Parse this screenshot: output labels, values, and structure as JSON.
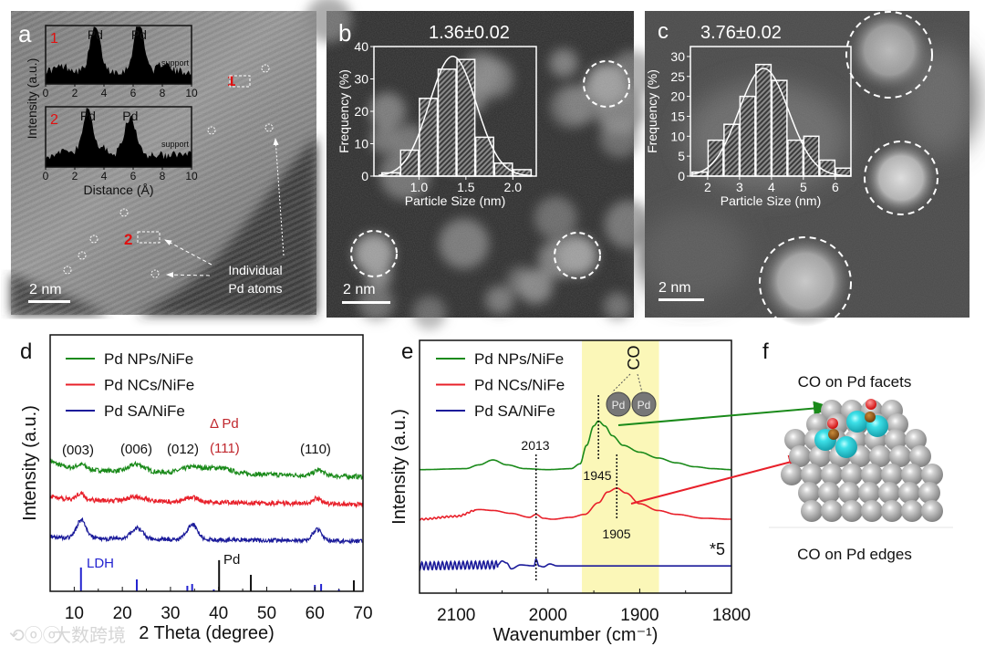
{
  "panels": {
    "a": {
      "label": "a",
      "scale_bar": "2 nm",
      "marker_1": "1",
      "marker_2": "2",
      "annotation_line1": "Individual",
      "annotation_line2": "Pd atoms",
      "inset_ylabel": "Intensity (a.u.)",
      "inset_xlabel": "Distance (Å)",
      "profile1": {
        "index": "1",
        "peak_label_1": "Pd",
        "peak_label_2": "Pd",
        "support_label": "support"
      },
      "profile2": {
        "index": "2",
        "peak_label_1": "Pd",
        "peak_label_2": "Pd",
        "support_label": "support"
      }
    },
    "b": {
      "label": "b",
      "size_text": "1.36±0.02",
      "scale_bar": "2 nm"
    },
    "c": {
      "label": "c",
      "size_text": "3.76±0.02",
      "scale_bar": "2 nm"
    },
    "d": {
      "label": "d",
      "hkl_003": "(003)",
      "hkl_006": "(006)",
      "hkl_012": "(012)",
      "hkl_110": "(110)",
      "pd_marker": "Δ Pd",
      "hkl_111": "(111)",
      "ref_ldh": "LDH",
      "ref_pd": "Pd"
    },
    "e": {
      "label": "e",
      "mark_2013": "2013",
      "mark_1945": "1945",
      "mark_1905": "1905",
      "scale_note": "*5",
      "co_label": "CO",
      "pd_atom_1": "Pd",
      "pd_atom_2": "Pd"
    },
    "f": {
      "label": "f",
      "caption_top": "CO on Pd facets",
      "caption_bottom": "CO on Pd edges"
    }
  },
  "watermark": "大数跨境",
  "colors": {
    "green": "#1a8a1a",
    "red": "#e8202a",
    "blue": "#1a1a9a",
    "highlight": "#fbf7b8",
    "pd_red": "#c0272d",
    "ldh_blue": "#2323d0"
  },
  "chart_data": [
    {
      "id": "a-profiles",
      "type": "area",
      "xlabel": "Distance (Å)",
      "ylabel": "Intensity (a.u.)",
      "xlim": [
        0,
        10
      ],
      "xticks": [
        "0",
        "2",
        "4",
        "6",
        "8",
        "10"
      ],
      "series": [
        {
          "name": "1",
          "baseline": 0.22,
          "peaks": [
            {
              "x": 3.4,
              "h": 0.75,
              "w": 0.35
            },
            {
              "x": 6.4,
              "h": 0.85,
              "w": 0.35
            },
            {
              "x": 8.1,
              "h": 0.15,
              "w": 0.3
            },
            {
              "x": 1.2,
              "h": 0.08,
              "w": 0.5
            }
          ]
        },
        {
          "name": "2",
          "baseline": 0.2,
          "peaks": [
            {
              "x": 2.9,
              "h": 0.75,
              "w": 0.35
            },
            {
              "x": 5.8,
              "h": 0.62,
              "w": 0.4
            },
            {
              "x": 4.0,
              "h": 0.12,
              "w": 0.3
            },
            {
              "x": 1.6,
              "h": 0.08,
              "w": 0.4
            }
          ]
        }
      ]
    },
    {
      "id": "b-histogram",
      "type": "bar",
      "xlabel": "Particle Size (nm)",
      "ylabel": "Frequency (%)",
      "xlim": [
        0.52,
        2.25
      ],
      "ylim": [
        0,
        40
      ],
      "xticks": [
        "1.0",
        "1.5",
        "2.0"
      ],
      "yticks": [
        "0",
        "10",
        "20",
        "30",
        "40"
      ],
      "bin_width": 0.2,
      "bins": [
        0.6,
        0.8,
        1.0,
        1.2,
        1.4,
        1.6,
        1.8,
        2.0
      ],
      "values": [
        1,
        8,
        24,
        33,
        36,
        12,
        4,
        2
      ],
      "fit": {
        "type": "gaussian",
        "mean": 1.36,
        "sigma": 0.25,
        "amplitude": 37
      }
    },
    {
      "id": "c-histogram",
      "type": "bar",
      "xlabel": "Particle Size (nm)",
      "ylabel": "Frequency (%)",
      "xlim": [
        1.46,
        6.49
      ],
      "ylim": [
        0,
        32.5
      ],
      "xticks": [
        "2",
        "3",
        "4",
        "5",
        "6"
      ],
      "yticks": [
        "0",
        "5",
        "10",
        "15",
        "20",
        "25",
        "30"
      ],
      "bin_width": 0.5,
      "bins": [
        1.5,
        2.0,
        2.5,
        3.0,
        3.5,
        4.0,
        4.5,
        5.0,
        5.5,
        6.0
      ],
      "values": [
        1,
        9,
        13,
        20,
        28,
        24,
        9,
        10,
        4,
        2
      ],
      "fit": {
        "type": "gaussian",
        "mean": 3.76,
        "sigma": 0.78,
        "amplitude": 27
      }
    },
    {
      "id": "d-xrd",
      "type": "line",
      "xlabel": "2 Theta (degree)",
      "ylabel": "Intensity (a.u.)",
      "xlim": [
        5,
        70
      ],
      "ylim": [
        0,
        2.8
      ],
      "xticks": [
        "10",
        "20",
        "30",
        "40",
        "50",
        "60",
        "70"
      ],
      "series": [
        {
          "name": "Pd NPs/NiFe",
          "color": "#1a8a1a",
          "offset": 1.33,
          "slope": -0.0012,
          "start_rise": 0.1,
          "noise": 0.025,
          "peaks": [
            {
              "x": 11.5,
              "h": 0.05,
              "w": 1.0
            },
            {
              "x": 23,
              "h": 0.08,
              "w": 1.5
            },
            {
              "x": 34.5,
              "h": 0.06,
              "w": 2
            },
            {
              "x": 40,
              "h": 0.06,
              "w": 2.5
            },
            {
              "x": 60.8,
              "h": 0.06,
              "w": 1
            }
          ]
        },
        {
          "name": "Pd NCs/NiFe",
          "color": "#e8202a",
          "offset": 1.0,
          "slope": -0.0008,
          "start_rise": 0.04,
          "noise": 0.025,
          "peaks": [
            {
              "x": 11.3,
              "h": 0.07,
              "w": 0.8
            },
            {
              "x": 23,
              "h": 0.05,
              "w": 1.8
            },
            {
              "x": 34.5,
              "h": 0.05,
              "w": 1.2
            },
            {
              "x": 60.5,
              "h": 0.06,
              "w": 1
            }
          ]
        },
        {
          "name": "Pd SA/NiFe",
          "color": "#1a1a9a",
          "offset": 0.58,
          "slope": -0.0005,
          "start_rise": 0.02,
          "noise": 0.022,
          "peaks": [
            {
              "x": 11.5,
              "h": 0.2,
              "w": 1.0
            },
            {
              "x": 23,
              "h": 0.12,
              "w": 1.2
            },
            {
              "x": 34.5,
              "h": 0.16,
              "w": 1.1
            },
            {
              "x": 60.5,
              "h": 0.12,
              "w": 1.0
            }
          ]
        }
      ],
      "references": [
        {
          "name": "LDH",
          "color": "#2323d0",
          "lines": [
            [
              11.4,
              0.26
            ],
            [
              23,
              0.13
            ],
            [
              33.5,
              0.06
            ],
            [
              34.5,
              0.08
            ],
            [
              39,
              0.02
            ],
            [
              60,
              0.07
            ],
            [
              61.3,
              0.08
            ],
            [
              65,
              0.02
            ]
          ]
        },
        {
          "name": "Pd",
          "color": "#111111",
          "lines": [
            [
              40.1,
              0.34
            ],
            [
              46.7,
              0.18
            ],
            [
              68.1,
              0.12
            ]
          ]
        }
      ]
    },
    {
      "id": "e-drifts",
      "type": "line",
      "xlabel": "Wavenumber (cm⁻¹)",
      "ylabel": "Intensity (a.u.)",
      "xlim": [
        2140,
        1800
      ],
      "ylim": [
        0,
        2.6
      ],
      "xticks": [
        "2100",
        "2000",
        "1900",
        "1800"
      ],
      "highlight_range": [
        1963,
        1879
      ],
      "series": [
        {
          "name": "Pd NPs/NiFe",
          "color": "#1a8a1a",
          "offset": 1.27,
          "points": [
            [
              2140,
              0
            ],
            [
              2090,
              0.01
            ],
            [
              2075,
              0.05
            ],
            [
              2060,
              0.1
            ],
            [
              2045,
              0.05
            ],
            [
              2025,
              0.01
            ],
            [
              2000,
              0
            ],
            [
              1975,
              0.01
            ],
            [
              1965,
              0.06
            ],
            [
              1958,
              0.25
            ],
            [
              1950,
              0.45
            ],
            [
              1945,
              0.5
            ],
            [
              1938,
              0.45
            ],
            [
              1930,
              0.35
            ],
            [
              1918,
              0.25
            ],
            [
              1900,
              0.18
            ],
            [
              1880,
              0.12
            ],
            [
              1860,
              0.07
            ],
            [
              1840,
              0.03
            ],
            [
              1820,
              0.01
            ],
            [
              1800,
              0
            ]
          ]
        },
        {
          "name": "Pd NCs/NiFe",
          "color": "#e8202a",
          "offset": 0.76,
          "ripple": {
            "from": 2140,
            "to": 2080,
            "amplitude": 0.008
          },
          "points": [
            [
              2140,
              0
            ],
            [
              2100,
              0.03
            ],
            [
              2075,
              0.1
            ],
            [
              2060,
              0.09
            ],
            [
              2040,
              0.06
            ],
            [
              2020,
              0.02
            ],
            [
              2013,
              0.05
            ],
            [
              2005,
              0.01
            ],
            [
              1995,
              0
            ],
            [
              1975,
              0.02
            ],
            [
              1960,
              0.05
            ],
            [
              1945,
              0.17
            ],
            [
              1935,
              0.28
            ],
            [
              1925,
              0.32
            ],
            [
              1915,
              0.27
            ],
            [
              1900,
              0.16
            ],
            [
              1880,
              0.09
            ],
            [
              1860,
              0.05
            ],
            [
              1830,
              0.01
            ],
            [
              1800,
              0
            ]
          ]
        },
        {
          "name": "Pd SA/NiFe",
          "color": "#1a1a9a",
          "offset": 0.28,
          "ripple": {
            "from": 2140,
            "to": 2055,
            "amplitude": 0.04
          },
          "points": [
            [
              2140,
              0
            ],
            [
              2055,
              0.01
            ],
            [
              2050,
              0.05
            ],
            [
              2045,
              0.03
            ],
            [
              2040,
              -0.03
            ],
            [
              2030,
              0.01
            ],
            [
              2015,
              0.0
            ],
            [
              2013,
              0.07
            ],
            [
              2010,
              0.0
            ],
            [
              2005,
              -0.01
            ],
            [
              1998,
              0.02
            ],
            [
              1990,
              0
            ],
            [
              1800,
              0
            ]
          ]
        }
      ],
      "markers": [
        2013,
        1945,
        1905
      ]
    }
  ]
}
